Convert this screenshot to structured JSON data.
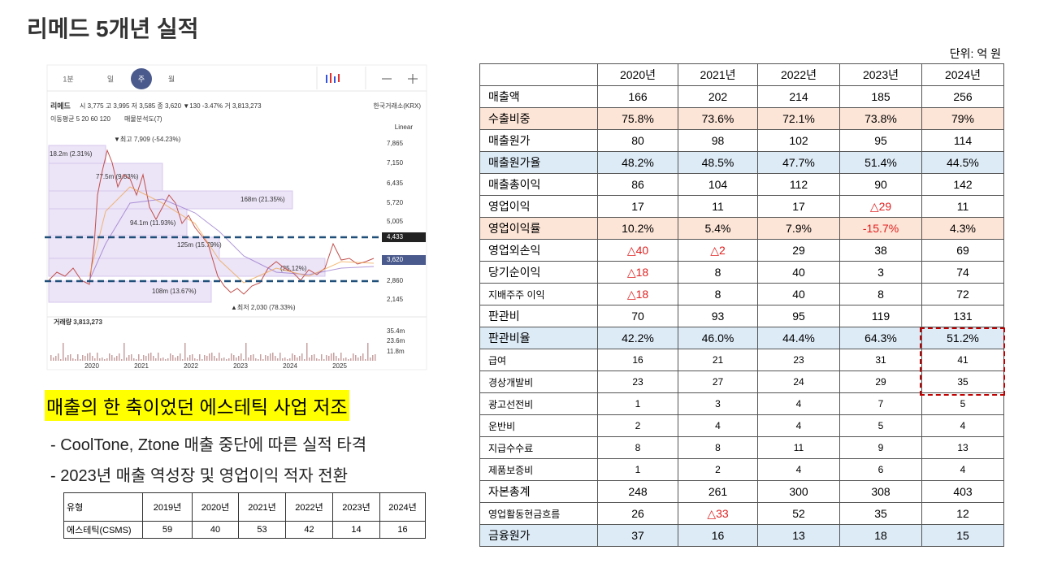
{
  "title": "리메드 5개년 실적",
  "stock_chart": {
    "tabs": [
      "1분",
      "일",
      "주",
      "월"
    ],
    "name": "리메드",
    "quote": "시 3,775 고 3,995 저 3,585 종 3,620 ▼130 -3.47% 거 3,813,273",
    "exchange": "한국거래소(KRX)",
    "indicator": "이동평균 5 20 60 120",
    "indicator2": "매물분석도(7)",
    "scale": "Linear",
    "annotations": [
      "▼최고 7,909 (-54.23%)",
      "18.2m (2.31%)",
      "77.5m (9.83%)",
      "168m (21.35%)",
      "94.1m (11.93%)",
      "125m (15.79%)",
      "(25.12%)",
      "108m (13.67%)",
      "▲최저 2,030 (78.33%)"
    ],
    "price_labels": [
      "7,865",
      "7,150",
      "6,435",
      "5,720",
      "5,005",
      "2,860",
      "2,145"
    ],
    "price_tags": [
      "4,433",
      "3,620"
    ],
    "volume_title": "거래량 3,813,273",
    "volume_labels": [
      "35.4m",
      "23.6m",
      "11.8m"
    ],
    "years": [
      "2020",
      "2021",
      "2022",
      "2023",
      "2024",
      "2025"
    ]
  },
  "headline": "매출의 한 축이었던 에스테틱 사업 저조",
  "bullets": [
    "- CoolTone, Ztone 매출 중단에 따른 실적 타격",
    "- 2023년 매출 역성장 및 영업이익 적자 전환"
  ],
  "small_table": {
    "header": [
      "유형",
      "2019년",
      "2020년",
      "2021년",
      "2022년",
      "2023년",
      "2024년"
    ],
    "row": [
      "에스테틱(CSMS)",
      "59",
      "40",
      "53",
      "42",
      "14",
      "16"
    ]
  },
  "table": {
    "unit": "단위: 억 원",
    "header": [
      "2020년",
      "2021년",
      "2022년",
      "2023년",
      "2024년"
    ],
    "rows": [
      {
        "label": "매출액",
        "values": [
          "166",
          "202",
          "214",
          "185",
          "256"
        ]
      },
      {
        "label": "수출비중",
        "values": [
          "75.8%",
          "73.6%",
          "72.1%",
          "73.8%",
          "79%"
        ],
        "color": "#fce4d6"
      },
      {
        "label": "매출원가",
        "values": [
          "80",
          "98",
          "102",
          "95",
          "114"
        ]
      },
      {
        "label": "매출원가율",
        "values": [
          "48.2%",
          "48.5%",
          "47.7%",
          "51.4%",
          "44.5%"
        ],
        "color": "#ddebf7"
      },
      {
        "label": "매출총이익",
        "values": [
          "86",
          "104",
          "112",
          "90",
          "142"
        ]
      },
      {
        "label": "영업이익",
        "values": [
          "17",
          "11",
          "17",
          "△29",
          "11"
        ]
      },
      {
        "label": "영업이익률",
        "values": [
          "10.2%",
          "5.4%",
          "7.9%",
          "-15.7%",
          "4.3%"
        ],
        "color": "#fce4d6"
      },
      {
        "label": "영업외손익",
        "values": [
          "△40",
          "△2",
          "29",
          "38",
          "69"
        ]
      },
      {
        "label": "당기순이익",
        "values": [
          "△18",
          "8",
          "40",
          "3",
          "74"
        ]
      },
      {
        "label": "지배주주 이익",
        "values": [
          "△18",
          "8",
          "40",
          "8",
          "72"
        ]
      },
      {
        "label": "판관비",
        "values": [
          "70",
          "93",
          "95",
          "119",
          "131"
        ]
      },
      {
        "label": "판관비율",
        "values": [
          "42.2%",
          "46.0%",
          "44.4%",
          "64.3%",
          "51.2%"
        ],
        "color": "#ddebf7"
      },
      {
        "label": "급여",
        "values": [
          "16",
          "21",
          "23",
          "31",
          "41"
        ],
        "small": true
      },
      {
        "label": "경상개발비",
        "values": [
          "23",
          "27",
          "24",
          "29",
          "35"
        ],
        "small": true
      },
      {
        "label": "광고선전비",
        "values": [
          "1",
          "3",
          "4",
          "7",
          "5"
        ],
        "small": true
      },
      {
        "label": "운반비",
        "values": [
          "2",
          "4",
          "4",
          "5",
          "4"
        ],
        "small": true
      },
      {
        "label": "지급수수료",
        "values": [
          "8",
          "8",
          "11",
          "9",
          "13"
        ],
        "small": true
      },
      {
        "label": "제품보증비",
        "values": [
          "1",
          "2",
          "4",
          "6",
          "4"
        ],
        "small": true
      },
      {
        "label": "자본총계",
        "values": [
          "248",
          "261",
          "300",
          "308",
          "403"
        ]
      },
      {
        "label": "영업활동현금흐름",
        "values": [
          "26",
          "△33",
          "52",
          "35",
          "12"
        ]
      },
      {
        "label": "금융원가",
        "values": [
          "37",
          "16",
          "13",
          "18",
          "15"
        ],
        "color": "#ddebf7"
      }
    ]
  }
}
